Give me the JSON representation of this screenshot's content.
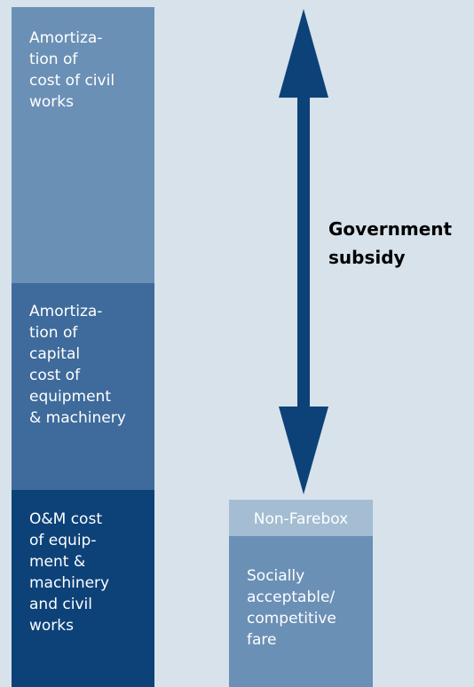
{
  "blocks": [
    {
      "lines": [
        "Amortiza-",
        "tion of",
        "cost of civil",
        "works"
      ]
    },
    {
      "lines": [
        "Amortiza-",
        "tion of",
        "capital",
        "cost of",
        "equipment",
        "& machinery"
      ]
    },
    {
      "lines": [
        "O&M cost",
        "of equip-",
        "ment &",
        "machinery",
        "and civil",
        "works"
      ]
    }
  ],
  "non_farebox": "Non-Farebox",
  "fare": {
    "lines": [
      "Socially",
      "acceptable/",
      "competitive",
      "fare"
    ]
  },
  "subsidy": {
    "lines": [
      "Government",
      "subsidy"
    ]
  }
}
